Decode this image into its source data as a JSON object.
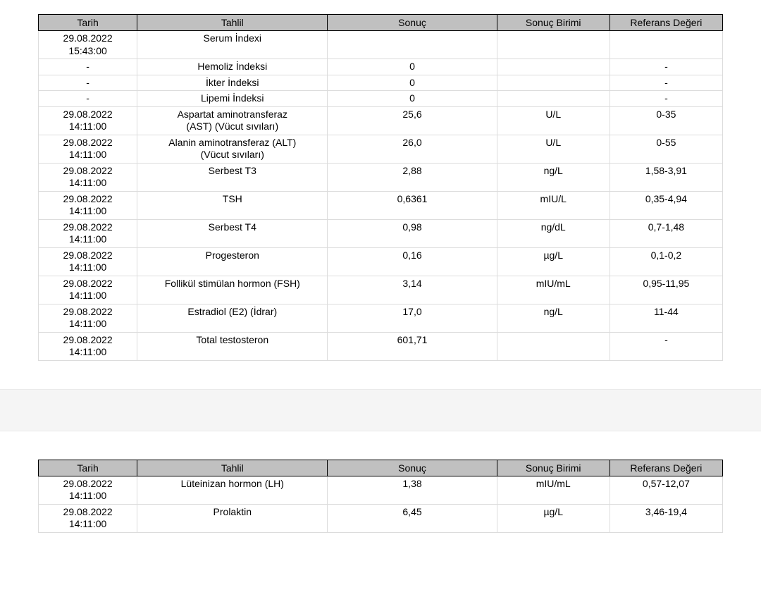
{
  "columns": {
    "date": "Tarih",
    "test": "Tahlil",
    "result": "Sonuç",
    "unit": "Sonuç Birimi",
    "ref": "Referans Değeri"
  },
  "styling": {
    "header_bg": "#c0c0c0",
    "header_border": "#000000",
    "cell_border": "#dcdcdc",
    "font_family": "Arial",
    "font_size_pt": 11,
    "col_widths_pct": {
      "date": 14,
      "test": 27,
      "result": 24,
      "unit": 16,
      "ref": 16
    }
  },
  "table1": {
    "rows": [
      {
        "date": "29.08.2022\n15:43:00",
        "test": "Serum İndexi",
        "result": "",
        "unit": "",
        "ref": ""
      },
      {
        "date": "-",
        "test": "Hemoliz İndeksi",
        "result": "0",
        "unit": "",
        "ref": "-"
      },
      {
        "date": "-",
        "test": "İkter İndeksi",
        "result": "0",
        "unit": "",
        "ref": "-"
      },
      {
        "date": "-",
        "test": "Lipemi İndeksi",
        "result": "0",
        "unit": "",
        "ref": "-"
      },
      {
        "date": "29.08.2022\n14:11:00",
        "test": "Aspartat aminotransferaz\n(AST) (Vücut sıvıları)",
        "result": "25,6",
        "unit": "U/L",
        "ref": "0-35"
      },
      {
        "date": "29.08.2022\n14:11:00",
        "test": "Alanin aminotransferaz (ALT)\n(Vücut sıvıları)",
        "result": "26,0",
        "unit": "U/L",
        "ref": "0-55"
      },
      {
        "date": "29.08.2022\n14:11:00",
        "test": "Serbest T3",
        "result": "2,88",
        "unit": "ng/L",
        "ref": "1,58-3,91"
      },
      {
        "date": "29.08.2022\n14:11:00",
        "test": "TSH",
        "result": "0,6361",
        "unit": "mIU/L",
        "ref": "0,35-4,94"
      },
      {
        "date": "29.08.2022\n14:11:00",
        "test": "Serbest T4",
        "result": "0,98",
        "unit": "ng/dL",
        "ref": "0,7-1,48"
      },
      {
        "date": "29.08.2022\n14:11:00",
        "test": "Progesteron",
        "result": "0,16",
        "unit": "µg/L",
        "ref": "0,1-0,2"
      },
      {
        "date": "29.08.2022\n14:11:00",
        "test": "Follikül stimülan hormon (FSH)",
        "result": "3,14",
        "unit": "mIU/mL",
        "ref": "0,95-11,95"
      },
      {
        "date": "29.08.2022\n14:11:00",
        "test": "Estradiol (E2) (İdrar)",
        "result": "17,0",
        "unit": "ng/L",
        "ref": "11-44"
      },
      {
        "date": "29.08.2022\n14:11:00",
        "test": "Total testosteron",
        "result": "601,71",
        "unit": "",
        "ref": "-"
      }
    ]
  },
  "table2": {
    "rows": [
      {
        "date": "29.08.2022\n14:11:00",
        "test": "Lüteinizan hormon (LH)",
        "result": "1,38",
        "unit": "mIU/mL",
        "ref": "0,57-12,07"
      },
      {
        "date": "29.08.2022\n14:11:00",
        "test": "Prolaktin",
        "result": "6,45",
        "unit": "µg/L",
        "ref": "3,46-19,4"
      }
    ]
  }
}
